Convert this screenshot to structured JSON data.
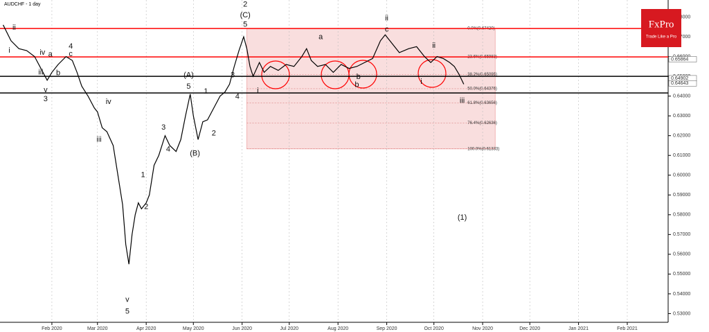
{
  "chart_data": {
    "type": "line",
    "title": "AUDCHF - 1 day",
    "brand": "FxPro",
    "tagline": "Trade Like a Pro",
    "x": [
      0,
      5,
      10,
      15,
      20,
      24,
      28,
      31,
      35,
      40,
      44,
      47,
      50,
      54,
      58,
      60,
      63,
      66,
      70,
      73,
      76,
      78,
      80,
      82,
      84,
      86,
      88,
      91,
      93,
      96,
      99,
      103,
      106,
      110,
      113,
      116,
      119,
      121,
      124,
      127,
      130,
      134,
      138,
      141,
      144,
      147,
      150,
      153,
      155,
      157,
      159,
      163,
      166,
      170,
      175,
      180,
      185,
      190,
      193,
      196,
      200,
      205,
      210,
      215,
      220,
      225,
      230,
      235,
      240,
      243,
      247,
      252,
      258,
      263,
      268,
      272,
      276,
      280,
      284,
      287,
      290,
      293
    ],
    "series": [
      {
        "name": "AUDCHF",
        "color": "#000000",
        "values": [
          0.676,
          0.668,
          0.664,
          0.663,
          0.66,
          0.654,
          0.648,
          0.652,
          0.656,
          0.66,
          0.658,
          0.652,
          0.645,
          0.64,
          0.634,
          0.632,
          0.624,
          0.622,
          0.615,
          0.6,
          0.585,
          0.565,
          0.555,
          0.57,
          0.58,
          0.586,
          0.583,
          0.586,
          0.59,
          0.605,
          0.61,
          0.62,
          0.615,
          0.612,
          0.618,
          0.63,
          0.641,
          0.63,
          0.618,
          0.627,
          0.628,
          0.634,
          0.64,
          0.642,
          0.646,
          0.655,
          0.663,
          0.67,
          0.664,
          0.655,
          0.65,
          0.657,
          0.652,
          0.655,
          0.653,
          0.656,
          0.655,
          0.66,
          0.664,
          0.658,
          0.655,
          0.656,
          0.652,
          0.656,
          0.654,
          0.655,
          0.657,
          0.659,
          0.668,
          0.671,
          0.667,
          0.662,
          0.664,
          0.665,
          0.66,
          0.657,
          0.66,
          0.659,
          0.657,
          0.655,
          0.651,
          0.646
        ]
      }
    ],
    "xlim": [
      -2,
      423
    ],
    "xticks": [
      {
        "value": 31,
        "label": "Feb 2020"
      },
      {
        "value": 60,
        "label": "Mar 2020"
      },
      {
        "value": 91,
        "label": "Apr 2020"
      },
      {
        "value": 121,
        "label": "May 2020"
      },
      {
        "value": 152,
        "label": "Jun 2020"
      },
      {
        "value": 182,
        "label": "Jul 2020"
      },
      {
        "value": 213,
        "label": "Aug 2020"
      },
      {
        "value": 244,
        "label": "Sep 2020"
      },
      {
        "value": 274,
        "label": "Oct 2020"
      },
      {
        "value": 305,
        "label": "Nov 2020"
      },
      {
        "value": 335,
        "label": "Dec 2020"
      },
      {
        "value": 366,
        "label": "Jan 2021"
      },
      {
        "value": 397,
        "label": "Feb 2021"
      }
    ],
    "ylim": [
      0.5256,
      0.6886
    ],
    "yticks": [
      {
        "value": 0.53,
        "label": "0.53000"
      },
      {
        "value": 0.54,
        "label": "0.54000"
      },
      {
        "value": 0.55,
        "label": "0.55000"
      },
      {
        "value": 0.56,
        "label": "0.56000"
      },
      {
        "value": 0.57,
        "label": "0.57000"
      },
      {
        "value": 0.58,
        "label": "0.58000"
      },
      {
        "value": 0.59,
        "label": "0.59000"
      },
      {
        "value": 0.6,
        "label": "0.60000"
      },
      {
        "value": 0.61,
        "label": "0.61000"
      },
      {
        "value": 0.62,
        "label": "0.62000"
      },
      {
        "value": 0.63,
        "label": "0.63000"
      },
      {
        "value": 0.64,
        "label": "0.64000"
      },
      {
        "value": 0.65,
        "label": "0.65000"
      },
      {
        "value": 0.66,
        "label": "0.66000"
      },
      {
        "value": 0.67,
        "label": "0.67000"
      },
      {
        "value": 0.68,
        "label": "0.68000"
      }
    ],
    "levels": [
      {
        "value": 0.6742,
        "color": "#ff0000"
      },
      {
        "value": 0.6598,
        "color": "#ff0000"
      },
      {
        "value": 0.65,
        "color": "#000000"
      },
      {
        "value": 0.6416,
        "color": "#000000"
      }
    ],
    "price_labels": [
      {
        "value": 0.65864,
        "label": "0.65864"
      },
      {
        "value": 0.64902,
        "label": "0.64902"
      },
      {
        "value": 0.64643,
        "label": "0.64643"
      }
    ],
    "fib_range": {
      "x": [
        155,
        313
      ],
      "y": [
        0.6742,
        0.61333
      ]
    },
    "fib_levels": [
      {
        "value": 0.6742,
        "label": "0.0%(0.67420)"
      },
      {
        "value": 0.65983,
        "label": "23.6%(0.65983)"
      },
      {
        "value": 0.65095,
        "label": "38.2%(0.65095)"
      },
      {
        "value": 0.64376,
        "label": "50.0%(0.64376)"
      },
      {
        "value": 0.63656,
        "label": "61.8%(0.63656)"
      },
      {
        "value": 0.62636,
        "label": "76.4%(0.62636)"
      },
      {
        "value": 0.61333,
        "label": "100.0%(0.61333)"
      }
    ],
    "annotations": [
      {
        "text": "ii",
        "x": 7,
        "y": 0.6745
      },
      {
        "text": "i",
        "x": 4,
        "y": 0.663
      },
      {
        "text": "iv",
        "x": 25,
        "y": 0.662
      },
      {
        "text": "a",
        "x": 30,
        "y": 0.661
      },
      {
        "text": "4",
        "x": 43,
        "y": 0.665
      },
      {
        "text": "c",
        "x": 43,
        "y": 0.6612
      },
      {
        "text": "b",
        "x": 35,
        "y": 0.6515
      },
      {
        "text": "iii",
        "x": 24,
        "y": 0.652
      },
      {
        "text": "v",
        "x": 27,
        "y": 0.643
      },
      {
        "text": "3",
        "x": 27,
        "y": 0.6385
      },
      {
        "text": "iv",
        "x": 67,
        "y": 0.637
      },
      {
        "text": "iii",
        "x": 61,
        "y": 0.618
      },
      {
        "text": "v",
        "x": 79,
        "y": 0.537
      },
      {
        "text": "5",
        "x": 79,
        "y": 0.531
      },
      {
        "text": "1",
        "x": 89,
        "y": 0.6
      },
      {
        "text": "2",
        "x": 91,
        "y": 0.584
      },
      {
        "text": "3",
        "x": 102,
        "y": 0.624
      },
      {
        "text": "4",
        "x": 105,
        "y": 0.613
      },
      {
        "text": "(A)",
        "x": 118,
        "y": 0.6506
      },
      {
        "text": "5",
        "x": 118,
        "y": 0.6448
      },
      {
        "text": "(B)",
        "x": 122,
        "y": 0.611
      },
      {
        "text": "1",
        "x": 129,
        "y": 0.6423
      },
      {
        "text": "2",
        "x": 134,
        "y": 0.6211
      },
      {
        "text": "3",
        "x": 146,
        "y": 0.6505
      },
      {
        "text": "4",
        "x": 149,
        "y": 0.6397
      },
      {
        "text": "2",
        "x": 154,
        "y": 0.6863
      },
      {
        "text": "(C)",
        "x": 154,
        "y": 0.6809
      },
      {
        "text": "5",
        "x": 154,
        "y": 0.6762
      },
      {
        "text": "i",
        "x": 162,
        "y": 0.6426
      },
      {
        "text": "a",
        "x": 202,
        "y": 0.6698
      },
      {
        "text": "b",
        "x": 225,
        "y": 0.6456
      },
      {
        "text": "b",
        "x": 226,
        "y": 0.6496
      },
      {
        "text": "ii",
        "x": 244,
        "y": 0.6793
      },
      {
        "text": "c",
        "x": 244,
        "y": 0.6736
      },
      {
        "text": "ii",
        "x": 274,
        "y": 0.6655
      },
      {
        "text": "i",
        "x": 266,
        "y": 0.6472
      },
      {
        "text": "iii",
        "x": 292,
        "y": 0.6375
      },
      {
        "text": "(1)",
        "x": 292,
        "y": 0.5785
      }
    ]
  }
}
